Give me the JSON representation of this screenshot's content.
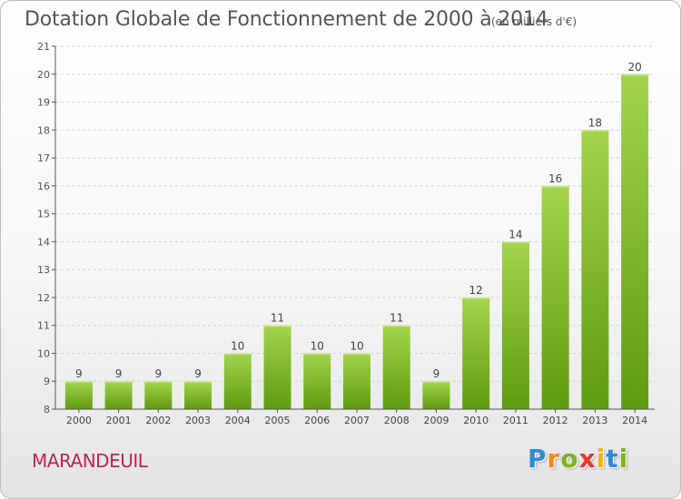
{
  "title": "Dotation Globale de Fonctionnement de 2000 à 2014",
  "subtitle": "(en milliers d'€)",
  "commune": "MARANDEUIL",
  "brand": {
    "letters": [
      "P",
      "r",
      "o",
      "x",
      "i",
      "t",
      "i"
    ],
    "colors": [
      "#2e8bd6",
      "#f08a1c",
      "#7ab51d",
      "#e8352e",
      "#f5b400",
      "#2e8bd6",
      "#7ab51d"
    ]
  },
  "colors": {
    "bar_top": "#a4d44e",
    "bar_bottom": "#5e9b10",
    "grid": "#d4d4d4",
    "axis": "#555555",
    "title": "#555555",
    "commune": "#c0244d"
  },
  "chart_data": {
    "type": "bar",
    "title": "Dotation Globale de Fonctionnement de 2000 à 2014",
    "subtitle": "(en milliers d'€)",
    "xlabel": "",
    "ylabel": "",
    "categories": [
      "2000",
      "2001",
      "2002",
      "2003",
      "2004",
      "2005",
      "2006",
      "2007",
      "2008",
      "2009",
      "2010",
      "2011",
      "2012",
      "2013",
      "2014"
    ],
    "values": [
      9,
      9,
      9,
      9,
      10,
      11,
      10,
      10,
      11,
      9,
      12,
      14,
      16,
      18,
      20
    ],
    "ylim": [
      8,
      21
    ],
    "yticks": [
      8,
      9,
      10,
      11,
      12,
      13,
      14,
      15,
      16,
      17,
      18,
      19,
      20,
      21
    ],
    "grid": "horizontal dashed",
    "legend": "none"
  }
}
